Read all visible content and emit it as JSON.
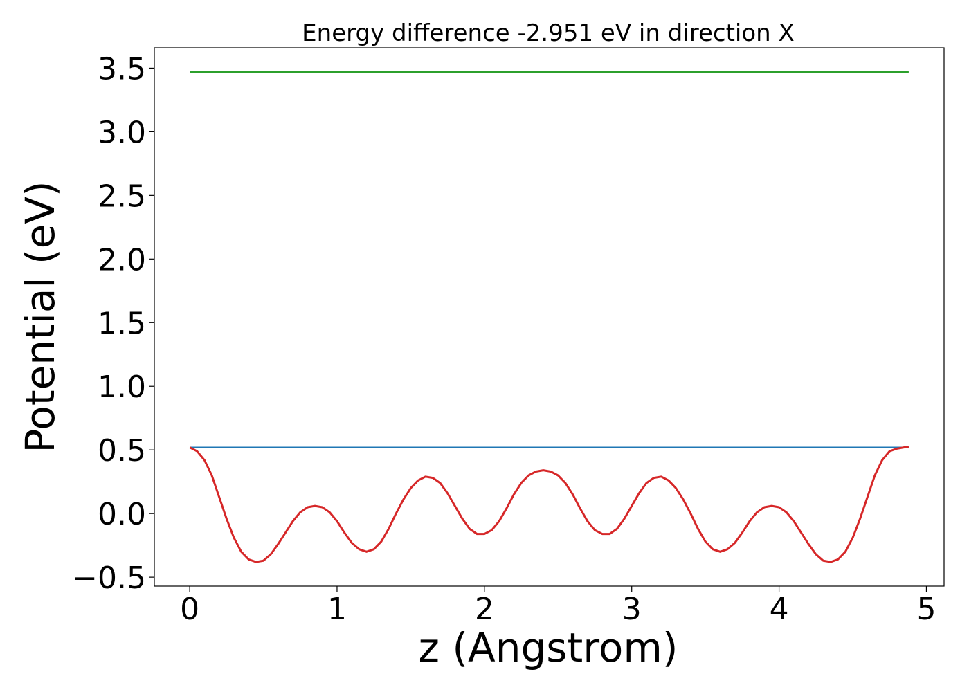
{
  "chart_data": {
    "type": "line",
    "title": "Energy difference -2.951 eV in direction X",
    "xlabel": "z (Angstrom)",
    "ylabel": "Potential (eV)",
    "xlim": [
      -0.24,
      5.12
    ],
    "ylim": [
      -0.57,
      3.66
    ],
    "xticks": [
      0,
      1,
      2,
      3,
      4,
      5
    ],
    "xtick_labels": [
      "0",
      "1",
      "2",
      "3",
      "4",
      "5"
    ],
    "yticks": [
      -0.5,
      0.0,
      0.5,
      1.0,
      1.5,
      2.0,
      2.5,
      3.0,
      3.5
    ],
    "ytick_labels": [
      "−0.5",
      "0.0",
      "0.5",
      "1.0",
      "1.5",
      "2.0",
      "2.5",
      "3.0",
      "3.5"
    ],
    "grid": false,
    "legend": "none",
    "series": [
      {
        "color": "#2ca02c",
        "x": [
          0,
          4.88
        ],
        "y": [
          3.47,
          3.47
        ]
      },
      {
        "color": "#1f77b4",
        "x": [
          0,
          4.88
        ],
        "y": [
          0.52,
          0.52
        ]
      },
      {
        "color": "#d62728",
        "x": [
          0,
          0.05,
          0.1,
          0.15,
          0.2,
          0.25,
          0.3,
          0.35,
          0.4,
          0.45,
          0.5,
          0.55,
          0.6,
          0.65,
          0.7,
          0.75,
          0.8,
          0.85,
          0.9,
          0.95,
          1.0,
          1.05,
          1.1,
          1.15,
          1.2,
          1.25,
          1.3,
          1.35,
          1.4,
          1.45,
          1.5,
          1.55,
          1.6,
          1.65,
          1.7,
          1.75,
          1.8,
          1.85,
          1.9,
          1.95,
          2.0,
          2.05,
          2.1,
          2.15,
          2.2,
          2.25,
          2.3,
          2.35,
          2.4,
          2.45,
          2.5,
          2.55,
          2.6,
          2.65,
          2.7,
          2.75,
          2.8,
          2.85,
          2.9,
          2.95,
          3.0,
          3.05,
          3.1,
          3.15,
          3.2,
          3.25,
          3.3,
          3.35,
          3.4,
          3.45,
          3.5,
          3.55,
          3.6,
          3.65,
          3.7,
          3.75,
          3.8,
          3.85,
          3.9,
          3.95,
          4.0,
          4.05,
          4.1,
          4.15,
          4.2,
          4.25,
          4.3,
          4.35,
          4.4,
          4.45,
          4.5,
          4.55,
          4.6,
          4.65,
          4.7,
          4.75,
          4.8,
          4.85,
          4.88
        ],
        "y": [
          0.52,
          0.49,
          0.42,
          0.3,
          0.13,
          -0.04,
          -0.19,
          -0.3,
          -0.36,
          -0.38,
          -0.37,
          -0.32,
          -0.24,
          -0.15,
          -0.06,
          0.01,
          0.05,
          0.06,
          0.05,
          0.01,
          -0.06,
          -0.15,
          -0.23,
          -0.28,
          -0.3,
          -0.28,
          -0.22,
          -0.12,
          0.0,
          0.11,
          0.2,
          0.26,
          0.29,
          0.28,
          0.24,
          0.16,
          0.06,
          -0.04,
          -0.12,
          -0.16,
          -0.16,
          -0.13,
          -0.06,
          0.04,
          0.15,
          0.24,
          0.3,
          0.33,
          0.34,
          0.33,
          0.3,
          0.24,
          0.15,
          0.04,
          -0.06,
          -0.13,
          -0.16,
          -0.16,
          -0.12,
          -0.04,
          0.06,
          0.16,
          0.24,
          0.28,
          0.29,
          0.26,
          0.2,
          0.11,
          0.0,
          -0.12,
          -0.22,
          -0.28,
          -0.3,
          -0.28,
          -0.23,
          -0.15,
          -0.06,
          0.01,
          0.05,
          0.06,
          0.05,
          0.01,
          -0.06,
          -0.15,
          -0.24,
          -0.32,
          -0.37,
          -0.38,
          -0.36,
          -0.3,
          -0.19,
          -0.04,
          0.13,
          0.3,
          0.42,
          0.49,
          0.51,
          0.52,
          0.52
        ]
      }
    ]
  }
}
